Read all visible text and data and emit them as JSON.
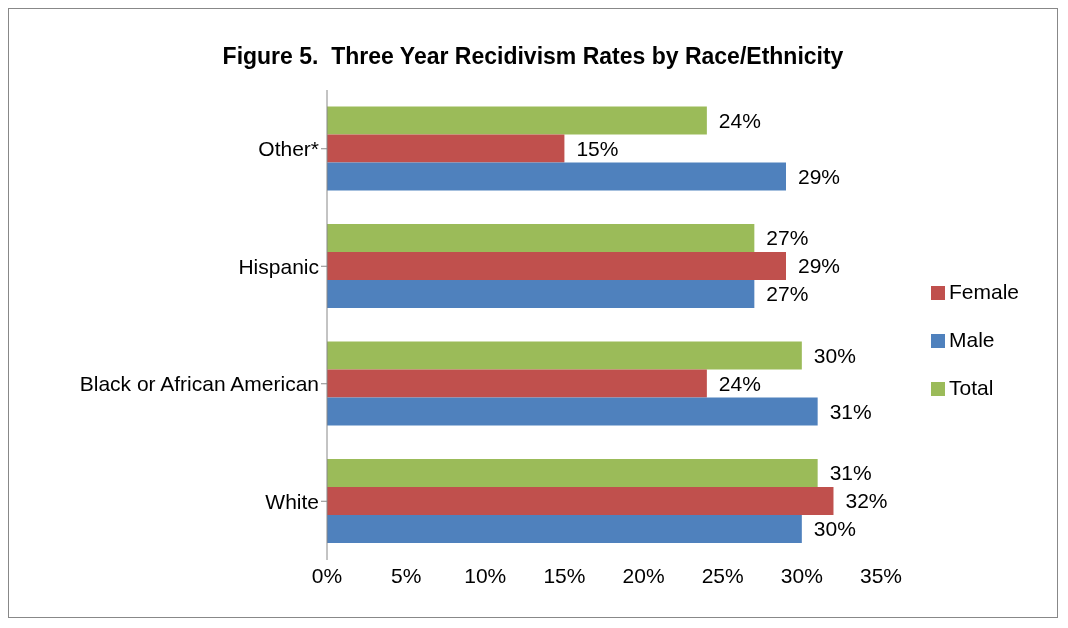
{
  "chart_data": {
    "type": "bar",
    "orientation": "horizontal",
    "title": "Figure 5.  Three Year Recidivism Rates by Race/Ethnicity",
    "categories": [
      "Other*",
      "Hispanic",
      "Black or African American",
      "White"
    ],
    "series": [
      {
        "name": "Total",
        "color": "#9bbb59",
        "values": [
          24,
          27,
          30,
          31
        ],
        "value_labels": [
          "24%",
          "27%",
          "30%",
          "31%"
        ]
      },
      {
        "name": "Female",
        "color": "#c0504d",
        "values": [
          15,
          29,
          24,
          32
        ],
        "value_labels": [
          "15%",
          "29%",
          "24%",
          "32%"
        ]
      },
      {
        "name": "Male",
        "color": "#4f81bd",
        "values": [
          29,
          27,
          31,
          30
        ],
        "value_labels": [
          "29%",
          "27%",
          "31%",
          "30%"
        ]
      }
    ],
    "xlim": [
      0,
      35
    ],
    "xticks": [
      {
        "value": 0,
        "label": "0%"
      },
      {
        "value": 5,
        "label": "5%"
      },
      {
        "value": 10,
        "label": "10%"
      },
      {
        "value": 15,
        "label": "15%"
      },
      {
        "value": 20,
        "label": "20%"
      },
      {
        "value": 25,
        "label": "25%"
      },
      {
        "value": 30,
        "label": "30%"
      },
      {
        "value": 35,
        "label": "35%"
      }
    ],
    "grid": false,
    "legend": "right"
  }
}
